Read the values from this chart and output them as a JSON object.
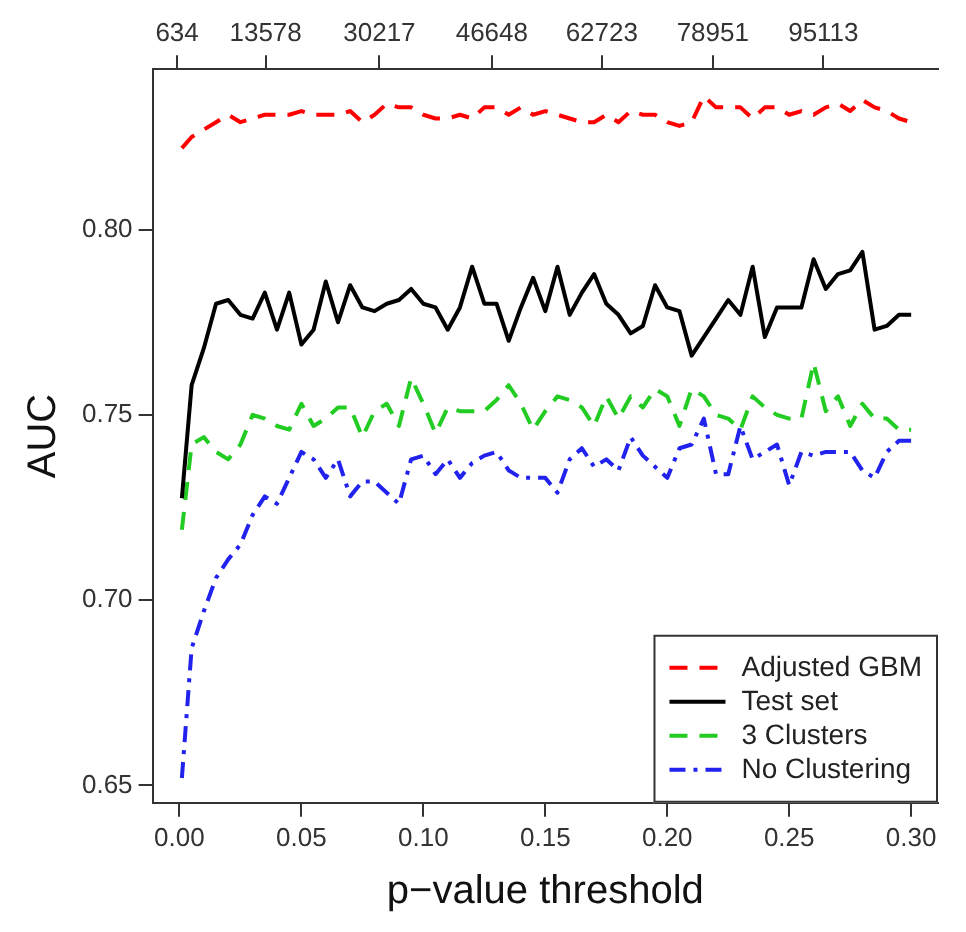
{
  "chart_data": {
    "type": "line",
    "xlabel": "p−value threshold",
    "ylabel": "AUC",
    "x": [
      0.001,
      0.005,
      0.01,
      0.015,
      0.02,
      0.025,
      0.03,
      0.035,
      0.04,
      0.045,
      0.05,
      0.055,
      0.06,
      0.065,
      0.07,
      0.075,
      0.08,
      0.085,
      0.09,
      0.095,
      0.1,
      0.105,
      0.11,
      0.115,
      0.12,
      0.125,
      0.13,
      0.135,
      0.14,
      0.145,
      0.15,
      0.155,
      0.16,
      0.165,
      0.17,
      0.175,
      0.18,
      0.185,
      0.19,
      0.195,
      0.2,
      0.205,
      0.21,
      0.215,
      0.22,
      0.225,
      0.23,
      0.235,
      0.24,
      0.245,
      0.25,
      0.255,
      0.26,
      0.265,
      0.27,
      0.275,
      0.28,
      0.285,
      0.29,
      0.295,
      0.3
    ],
    "series": [
      {
        "name": "Adjusted GBM",
        "color": "#ff0000",
        "line_style": "dashed",
        "values": [
          0.822,
          0.825,
          0.827,
          0.829,
          0.831,
          0.829,
          0.83,
          0.831,
          0.831,
          0.831,
          0.832,
          0.831,
          0.831,
          0.831,
          0.832,
          0.829,
          0.831,
          0.834,
          0.833,
          0.833,
          0.831,
          0.83,
          0.83,
          0.831,
          0.83,
          0.833,
          0.833,
          0.831,
          0.833,
          0.831,
          0.832,
          0.831,
          0.83,
          0.829,
          0.829,
          0.831,
          0.829,
          0.832,
          0.831,
          0.831,
          0.829,
          0.828,
          0.829,
          0.836,
          0.833,
          0.833,
          0.833,
          0.83,
          0.833,
          0.833,
          0.831,
          0.832,
          0.831,
          0.833,
          0.834,
          0.832,
          0.835,
          0.833,
          0.832,
          0.83,
          0.829
        ]
      },
      {
        "name": "Test set",
        "color": "#000000",
        "line_style": "solid",
        "values": [
          0.7275,
          0.758,
          0.768,
          0.78,
          0.781,
          0.777,
          0.776,
          0.783,
          0.773,
          0.783,
          0.769,
          0.773,
          0.786,
          0.775,
          0.785,
          0.779,
          0.778,
          0.78,
          0.781,
          0.784,
          0.78,
          0.779,
          0.773,
          0.779,
          0.79,
          0.78,
          0.78,
          0.77,
          0.779,
          0.787,
          0.778,
          0.79,
          0.777,
          0.783,
          0.788,
          0.78,
          0.777,
          0.772,
          0.774,
          0.785,
          0.779,
          0.778,
          0.766,
          0.771,
          0.776,
          0.781,
          0.777,
          0.79,
          0.771,
          0.779,
          0.779,
          0.779,
          0.792,
          0.784,
          0.788,
          0.789,
          0.794,
          0.773,
          0.774,
          0.777,
          0.777
        ]
      },
      {
        "name": "3 Clusters",
        "color": "#22cc22",
        "line_style": "dashed",
        "values": [
          0.719,
          0.742,
          0.744,
          0.74,
          0.738,
          0.742,
          0.75,
          0.749,
          0.747,
          0.746,
          0.753,
          0.747,
          0.749,
          0.752,
          0.752,
          0.744,
          0.751,
          0.753,
          0.747,
          0.76,
          0.753,
          0.745,
          0.752,
          0.751,
          0.751,
          0.751,
          0.754,
          0.758,
          0.753,
          0.746,
          0.751,
          0.755,
          0.754,
          0.752,
          0.747,
          0.755,
          0.749,
          0.755,
          0.752,
          0.757,
          0.755,
          0.747,
          0.757,
          0.755,
          0.75,
          0.749,
          0.746,
          0.755,
          0.752,
          0.75,
          0.749,
          0.749,
          0.764,
          0.751,
          0.755,
          0.747,
          0.753,
          0.749,
          0.749,
          0.746,
          0.746
        ]
      },
      {
        "name": "No Clustering",
        "color": "#2222ee",
        "line_style": "dashdot",
        "values": [
          0.652,
          0.687,
          0.697,
          0.706,
          0.711,
          0.715,
          0.723,
          0.728,
          0.726,
          0.733,
          0.74,
          0.738,
          0.733,
          0.738,
          0.728,
          0.732,
          0.732,
          0.729,
          0.726,
          0.738,
          0.739,
          0.734,
          0.738,
          0.733,
          0.737,
          0.739,
          0.74,
          0.735,
          0.733,
          0.733,
          0.733,
          0.729,
          0.738,
          0.741,
          0.736,
          0.738,
          0.735,
          0.744,
          0.739,
          0.736,
          0.733,
          0.741,
          0.742,
          0.749,
          0.734,
          0.734,
          0.747,
          0.738,
          0.74,
          0.742,
          0.731,
          0.74,
          0.739,
          0.74,
          0.74,
          0.74,
          0.735,
          0.733,
          0.74,
          0.743,
          0.743
        ]
      }
    ],
    "xlim": [
      -0.011,
      0.311
    ],
    "ylim": [
      0.6453,
      0.8433
    ],
    "xticks": [
      {
        "value": 0,
        "label": "0.00"
      },
      {
        "value": 0.05,
        "label": "0.05"
      },
      {
        "value": 0.1,
        "label": "0.10"
      },
      {
        "value": 0.15,
        "label": "0.15"
      },
      {
        "value": 0.2,
        "label": "0.20"
      },
      {
        "value": 0.25,
        "label": "0.25"
      },
      {
        "value": 0.3,
        "label": "0.30"
      }
    ],
    "yticks": [
      0.65,
      {
        "value": 0.7,
        "label": "0.70"
      },
      0.75,
      {
        "value": 0.8,
        "label": "0.80"
      }
    ],
    "x2lim": [
      -2944,
      111872
    ],
    "x2ticks": [
      634,
      13578,
      30217,
      46648,
      62723,
      78951,
      95113
    ],
    "grid": false,
    "legend": "bottom right",
    "marker": "none"
  }
}
